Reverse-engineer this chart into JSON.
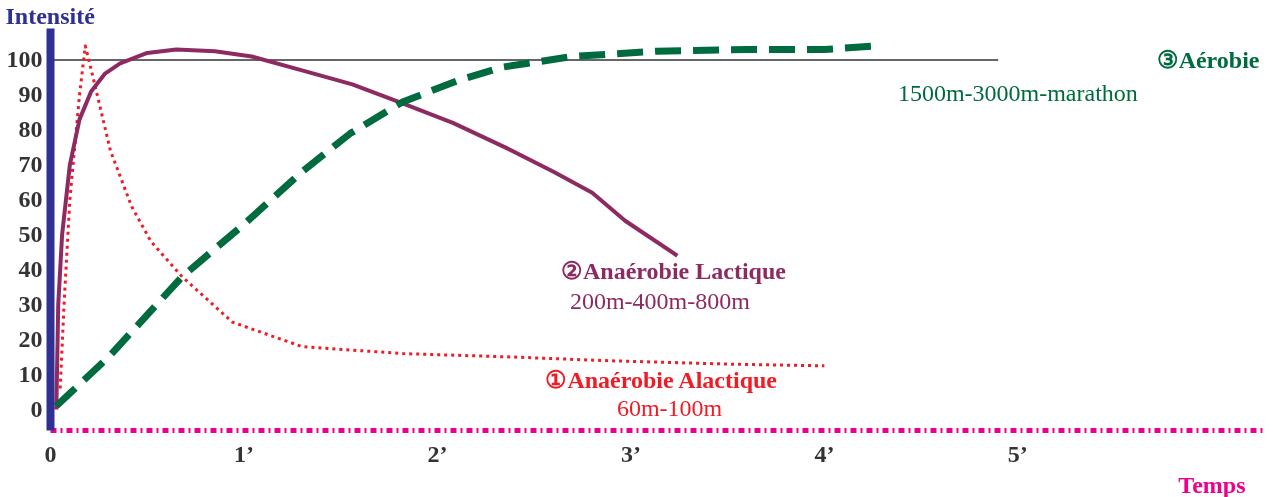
{
  "chart_data": {
    "type": "line",
    "ylabel": "Intensité",
    "xlabel": "Temps",
    "xlim": [
      0,
      6.28
    ],
    "ylim": [
      -6,
      109
    ],
    "xticks": [
      0,
      {
        "value": 1,
        "label": "1’"
      },
      {
        "value": 2,
        "label": "2’"
      },
      {
        "value": 3,
        "label": "3’"
      },
      {
        "value": 4,
        "label": "4’"
      },
      {
        "value": 5,
        "label": "5’"
      }
    ],
    "yticks": [
      0,
      10,
      20,
      30,
      40,
      50,
      60,
      70,
      80,
      90,
      100
    ],
    "grid": false,
    "ref_lines": [
      {
        "axis": "y",
        "value": 100,
        "color": "#333333"
      }
    ],
    "annotations": [
      "60m-100m",
      "200m-400m-800m",
      "1500m-3000m-marathon"
    ],
    "series": [
      {
        "name": "①Anaérobie Alactique",
        "color": "#ee1c25",
        "line_style": "dotted",
        "x": [
          0.05,
          0.07,
          0.1,
          0.15,
          0.18,
          0.22,
          0.31,
          0.42,
          0.52,
          0.68,
          0.94,
          1.3,
          1.82,
          2.4,
          2.86,
          3.5,
          4.0
        ],
        "values": [
          6,
          30,
          60,
          90,
          104,
          95,
          74,
          58,
          48,
          38,
          25,
          18,
          16,
          15,
          14,
          13,
          12.5
        ]
      },
      {
        "name": "②Anaérobie Lactique",
        "color": "#8e2a62",
        "line_style": "solid",
        "x": [
          0.03,
          0.04,
          0.06,
          0.1,
          0.15,
          0.21,
          0.28,
          0.36,
          0.5,
          0.65,
          0.85,
          1.04,
          1.3,
          1.56,
          1.8,
          2.08,
          2.35,
          2.6,
          2.8,
          2.97,
          3.24
        ],
        "values": [
          0,
          30,
          50,
          70,
          83,
          91,
          96,
          99,
          102,
          103,
          102.5,
          101,
          97,
          93,
          88,
          82,
          75,
          68,
          62,
          54,
          44
        ]
      },
      {
        "name": "③Aérobie",
        "color": "#006b3f",
        "line_style": "dashed",
        "x": [
          0.03,
          0.3,
          0.68,
          1.0,
          1.3,
          1.55,
          1.82,
          2.1,
          2.34,
          2.7,
          3.13,
          3.6,
          4.0,
          4.27
        ],
        "values": [
          1,
          15,
          38,
          53,
          68,
          79,
          88,
          94,
          98,
          101,
          102.5,
          103,
          103,
          104
        ]
      }
    ]
  }
}
